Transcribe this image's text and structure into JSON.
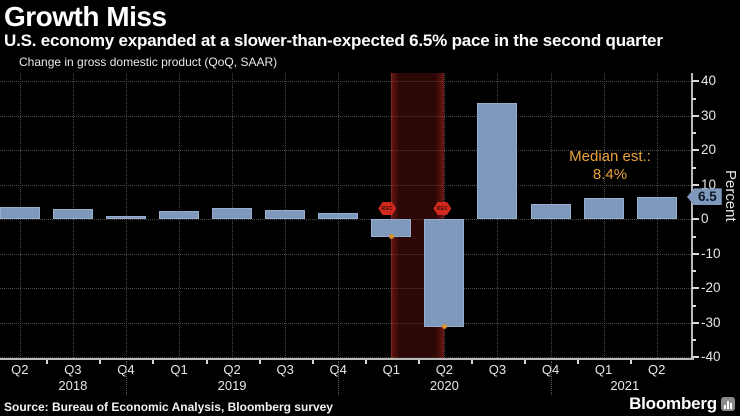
{
  "header": {
    "title": "Growth Miss",
    "subtitle": "U.S. economy expanded at a slower-than-expected 6.5% pace in the second quarter"
  },
  "legend": {
    "label": "Change in gross domestic product (QoQ, SAAR)",
    "swatch_color": "#7e99bb"
  },
  "annotation": {
    "line1": "Median est.:",
    "line2": "8.4%",
    "color": "#e9a23b"
  },
  "latest_value_tag": "6.5",
  "recession_flag_label": "REC",
  "footer": {
    "source": "Source: Bureau of Economic Analysis, Bloomberg survey",
    "brand": "Bloomberg"
  },
  "chart_data": {
    "type": "bar",
    "title": "Growth Miss",
    "legend": [
      "Change in gross domestic product (QoQ, SAAR)"
    ],
    "categories": [
      "Q2 2018",
      "Q3 2018",
      "Q4 2018",
      "Q1 2019",
      "Q2 2019",
      "Q3 2019",
      "Q4 2019",
      "Q1 2020",
      "Q2 2020",
      "Q3 2020",
      "Q4 2020",
      "Q1 2021",
      "Q2 2021"
    ],
    "quarter_labels": [
      "Q2",
      "Q3",
      "Q4",
      "Q1",
      "Q2",
      "Q3",
      "Q4",
      "Q1",
      "Q2",
      "Q3",
      "Q4",
      "Q1",
      "Q2"
    ],
    "years": [
      {
        "label": "2018",
        "anchor_index": 1
      },
      {
        "label": "2019",
        "anchor_index": 4
      },
      {
        "label": "2020",
        "anchor_index": 8
      },
      {
        "label": "2021",
        "anchor_index": 11.4
      }
    ],
    "year_separator_indices": [
      2,
      6,
      10
    ],
    "values": [
      3.5,
      2.9,
      1.1,
      2.4,
      3.2,
      2.8,
      1.9,
      -5.1,
      -31.2,
      33.8,
      4.5,
      6.3,
      6.5
    ],
    "ylabel": "Percent",
    "ylim": [
      -41,
      42
    ],
    "yticks": [
      40,
      30,
      20,
      10,
      0,
      -10,
      -20,
      -30,
      -40
    ],
    "yticks_minor": [
      35,
      25,
      15,
      5,
      -5,
      -15,
      -25,
      -35
    ],
    "grid": "dotted",
    "legend_position": "top-left",
    "bar_color": "#7e99bb",
    "recession_band": {
      "from_category": "Q1 2020",
      "to_category": "Q2 2020",
      "flag_label": "REC"
    },
    "recession_point_values": [
      -5.1,
      -31.2
    ],
    "median_estimate": 8.4,
    "latest_value": 6.5
  }
}
